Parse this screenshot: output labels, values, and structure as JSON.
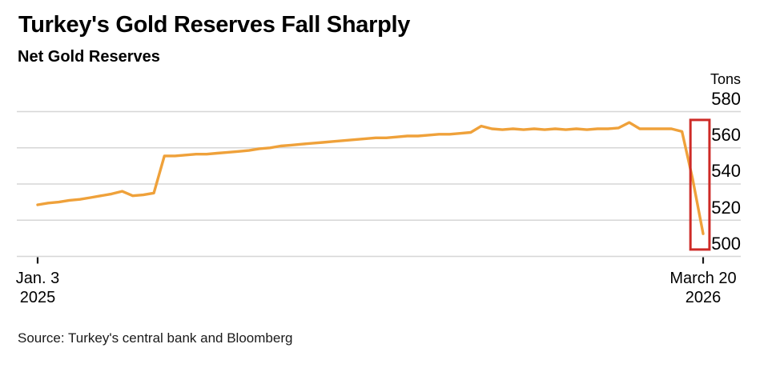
{
  "header": {
    "title": "Turkey's Gold Reserves Fall Sharply",
    "subtitle": "Net Gold Reserves"
  },
  "chart_data": {
    "type": "line",
    "title": "Turkey's Gold Reserves Fall Sharply",
    "subtitle": "Net Gold Reserves",
    "unit": "Tons",
    "source": "Source: Turkey's central bank and Bloomberg",
    "ylim": [
      500,
      580
    ],
    "grid": true,
    "legend": "none",
    "yticks": [
      "580",
      "560",
      "540",
      "520",
      "500"
    ],
    "grid_values": [
      580,
      560,
      540,
      520,
      500
    ],
    "xticks": [
      {
        "week": 0,
        "line1": "Jan. 3",
        "line2": "2025"
      },
      {
        "week": 63,
        "line1": "March 20",
        "line2": "2026"
      }
    ],
    "series": [
      {
        "name": "Net gold reserves (tons)",
        "cadence": "weekly",
        "values": [
          528.5,
          529.5,
          530,
          531,
          531.5,
          532.5,
          533.5,
          534.5,
          536,
          533.5,
          534,
          535,
          555.5,
          555.5,
          556,
          556.5,
          556.5,
          557,
          557.5,
          558,
          558.5,
          559.5,
          560,
          561,
          561.5,
          562,
          562.5,
          563,
          563.5,
          564,
          564.5,
          565,
          565.5,
          565.5,
          566,
          566.5,
          566.5,
          567,
          567.5,
          567.5,
          568,
          568.5,
          572,
          570.5,
          570,
          570.5,
          570,
          570.5,
          570,
          570.5,
          570,
          570.5,
          570,
          570.5,
          570.5,
          571,
          574,
          570.5,
          570.5,
          570.5,
          570.5,
          569,
          543,
          512.5
        ]
      }
    ],
    "annotations": [
      {
        "type": "rect",
        "name": "sharp-drop-highlight-box",
        "week_start": 61.8,
        "week_end": 63.6,
        "tons_low": 503.8,
        "tons_high": 575.4
      }
    ],
    "colors": {
      "line": "#EFA13A",
      "grid": "#D6D6D6",
      "highlight": "#CE2B27",
      "tick": "#1a1a1a",
      "text": "#000000"
    }
  }
}
